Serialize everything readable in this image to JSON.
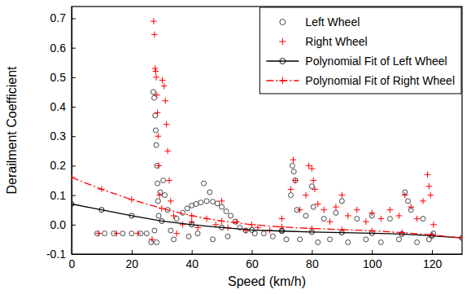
{
  "chart_data": {
    "type": "scatter",
    "x_label": "Speed (km/h)",
    "y_label": "Derailment Coefficient",
    "xlim": [
      0,
      130
    ],
    "ylim": [
      -0.1,
      0.74
    ],
    "xticks": [
      0,
      20,
      40,
      60,
      80,
      100,
      120
    ],
    "yticks": [
      -0.1,
      {
        "value": 0,
        "label": "0.0"
      },
      0.1,
      0.2,
      0.3,
      0.4,
      0.5,
      0.6,
      0.7
    ],
    "legend": "upper right",
    "grid": false,
    "series": [
      {
        "name": "Left Wheel",
        "type": "scatter",
        "color": "#333333",
        "marker": "circle",
        "line_style": "none",
        "x": [
          8.5,
          11,
          14,
          17,
          20,
          23,
          25,
          26.5,
          27.2,
          27.5,
          27.8,
          28,
          28.2,
          28.4,
          28.6,
          28.8,
          29,
          27.6,
          28.3,
          29.5,
          30.5,
          31,
          32,
          33,
          34,
          35,
          37,
          38.5,
          40,
          41.5,
          43,
          44,
          45,
          46,
          47,
          48.5,
          50,
          51.5,
          53,
          54.5,
          56,
          39,
          42,
          47,
          52,
          58,
          61,
          64,
          67,
          70,
          71.5,
          73,
          73.5,
          74,
          74.5,
          75,
          76,
          78,
          80,
          80.5,
          82,
          84,
          86,
          88,
          90,
          92,
          95,
          98,
          100,
          103,
          106,
          109,
          111,
          112,
          113,
          115,
          117,
          119,
          120.5
        ],
        "values": [
          -0.03,
          -0.03,
          -0.03,
          -0.03,
          -0.03,
          -0.03,
          -0.03,
          -0.06,
          0.45,
          0.43,
          0.37,
          0.32,
          0.27,
          0.2,
          0.14,
          0.08,
          0.03,
          -0.02,
          -0.06,
          0.11,
          0.15,
          0.1,
          0.05,
          -0.02,
          -0.05,
          0.02,
          0.04,
          0.055,
          0.065,
          0.07,
          0.075,
          0.14,
          0.08,
          0.11,
          0.078,
          0.072,
          0.06,
          0.045,
          0.03,
          0.01,
          -0.01,
          -0.04,
          -0.03,
          -0.05,
          -0.04,
          -0.02,
          -0.03,
          -0.03,
          -0.04,
          -0.02,
          -0.05,
          0.1,
          0.2,
          0.18,
          0.15,
          0.05,
          -0.05,
          0.03,
          0.13,
          0.06,
          -0.06,
          0.02,
          -0.05,
          0.04,
          0.08,
          -0.06,
          0.02,
          -0.05,
          0.03,
          -0.06,
          0.02,
          -0.05,
          0.11,
          0.08,
          0.05,
          -0.06,
          0.02,
          -0.05,
          -0.03
        ]
      },
      {
        "name": "Right Wheel",
        "type": "scatter",
        "color": "#ff0000",
        "marker": "plus",
        "line_style": "none",
        "x": [
          9,
          15,
          22,
          26.8,
          27.3,
          27.6,
          27.8,
          28,
          28.2,
          28.4,
          28.6,
          28.8,
          29,
          29.3,
          30.2,
          30.8,
          31.2,
          31.6,
          32,
          32.5,
          33,
          34,
          35,
          37,
          40,
          42,
          45,
          48,
          50,
          52,
          55,
          58,
          62,
          66,
          70,
          73,
          73.8,
          74.5,
          76,
          78,
          79,
          80,
          80.5,
          81,
          82,
          84,
          86,
          88,
          90,
          92,
          95,
          98,
          100,
          103,
          106,
          109,
          111,
          113,
          115,
          117,
          118.5,
          119,
          119.5,
          120.5
        ],
        "values": [
          -0.03,
          -0.03,
          -0.03,
          -0.05,
          0.69,
          0.645,
          0.53,
          0.52,
          0.5,
          0.44,
          0.38,
          0.3,
          0.2,
          0.1,
          0.49,
          0.47,
          0.42,
          0.34,
          0.25,
          0.15,
          0.08,
          0.03,
          -0.03,
          0.0,
          0.01,
          -0.01,
          0.02,
          0.0,
          0.08,
          -0.01,
          0.01,
          -0.02,
          -0.01,
          -0.02,
          0.02,
          0.12,
          0.22,
          0.15,
          0.05,
          0.1,
          0.2,
          0.19,
          0.15,
          0.12,
          0.07,
          0.05,
          0.01,
          0.06,
          0.1,
          0.03,
          0.05,
          0.01,
          0.04,
          0.02,
          0.05,
          0.03,
          0.1,
          0.06,
          0.02,
          0.08,
          0.17,
          0.13,
          0.1,
          0.0
        ]
      },
      {
        "name": "Polynomial Fit of Left Wheel",
        "type": "line",
        "color": "#000000",
        "marker": "circle",
        "line_style": "solid",
        "x": [
          0,
          10,
          20,
          30,
          40,
          50,
          60,
          70,
          80,
          90,
          100,
          110,
          120,
          130
        ],
        "values": [
          0.07,
          0.05,
          0.03,
          0.012,
          0.0,
          -0.01,
          -0.018,
          -0.022,
          -0.025,
          -0.027,
          -0.029,
          -0.032,
          -0.038,
          -0.045
        ]
      },
      {
        "name": "Polynomial Fit of Right Wheel",
        "type": "line",
        "color": "#ff0000",
        "marker": "plus",
        "line_style": "dashdot",
        "x": [
          0,
          10,
          20,
          30,
          40,
          50,
          60,
          70,
          80,
          90,
          100,
          110,
          120,
          130
        ],
        "values": [
          0.16,
          0.12,
          0.085,
          0.055,
          0.03,
          0.012,
          0.0,
          -0.008,
          -0.013,
          -0.017,
          -0.021,
          -0.027,
          -0.035,
          -0.045
        ]
      }
    ]
  }
}
